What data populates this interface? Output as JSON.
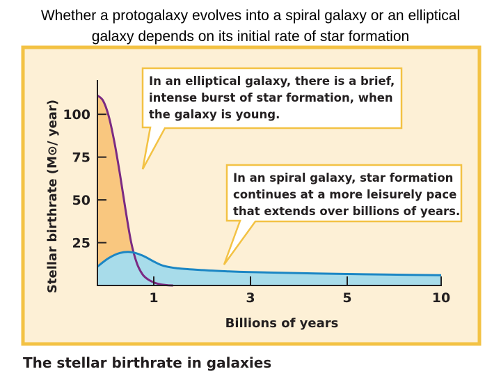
{
  "slide": {
    "title_line1": "Whether a protogalaxy evolves into a spiral galaxy or an elliptical",
    "title_line2": "galaxy depends on its initial rate of star formation"
  },
  "chart_data": {
    "type": "area",
    "title": "The stellar birthrate in galaxies",
    "xlabel": "Billions of years",
    "ylabel": "Stellar birthrate (M⊙/ year)",
    "x_ticks": [
      {
        "value": 1,
        "label": "1"
      },
      {
        "value": 3,
        "label": "3"
      },
      {
        "value": 5,
        "label": "5"
      },
      {
        "value": 10,
        "label": "10"
      }
    ],
    "y_ticks": [
      {
        "value": 25,
        "label": "25"
      },
      {
        "value": 50,
        "label": "50"
      },
      {
        "value": 75,
        "label": "75"
      },
      {
        "value": 100,
        "label": "100"
      }
    ],
    "ylim": [
      0,
      120
    ],
    "grid": false,
    "series": [
      {
        "name": "elliptical",
        "color": "#f9c77f",
        "line_color": "#7b2a83",
        "x": [
          0,
          0.1,
          0.2,
          0.3,
          0.4,
          0.5,
          0.6,
          0.7,
          0.8,
          0.9,
          1.0,
          1.1,
          1.2,
          1.3,
          1.4
        ],
        "y": [
          111,
          108,
          99,
          84,
          65,
          44,
          25,
          13,
          6.5,
          3.5,
          1.8,
          0.9,
          0.4,
          0.1,
          0
        ]
      },
      {
        "name": "spiral",
        "color": "#a8dcea",
        "line_color": "#1b86c4",
        "x": [
          0,
          0.2,
          0.4,
          0.6,
          0.8,
          1.0,
          1.2,
          1.5,
          2,
          2.5,
          3,
          4,
          5,
          7,
          10
        ],
        "y": [
          11,
          16,
          19,
          19.5,
          17.5,
          14,
          11.5,
          10,
          9,
          8.3,
          7.8,
          7.2,
          6.7,
          6.4,
          6
        ]
      }
    ],
    "annotations": [
      {
        "target": "elliptical",
        "lines": [
          "In an elliptical galaxy, there is a brief,",
          "intense burst of star formation, when",
          "the galaxy is young."
        ]
      },
      {
        "target": "spiral",
        "lines": [
          "In an spiral galaxy, star formation",
          "continues at a more leisurely pace",
          "that extends over billions of years."
        ]
      }
    ],
    "frame_color": "#f3c244",
    "background_color": "#fdf0d6"
  }
}
